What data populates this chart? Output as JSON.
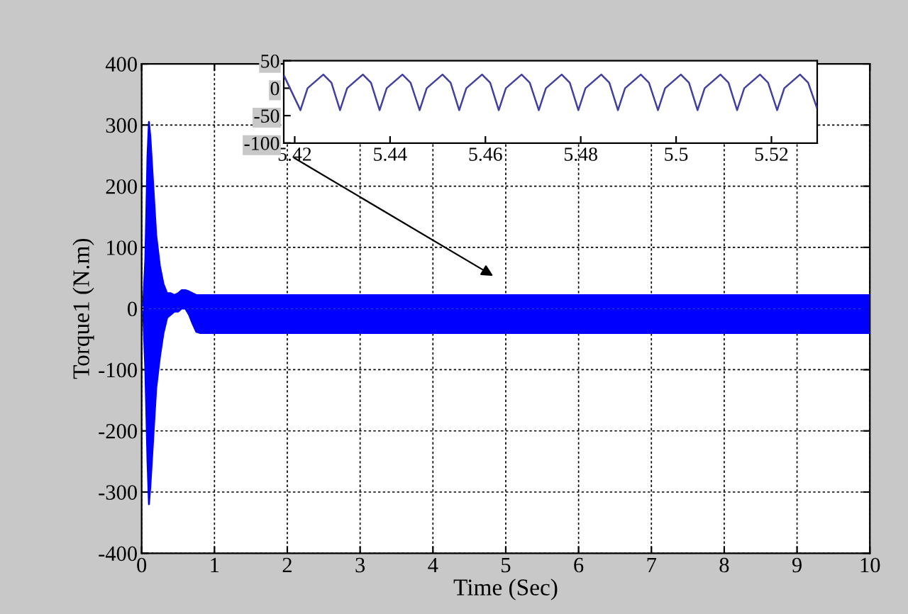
{
  "chart_data": [
    {
      "type": "line",
      "xlabel": "Time (Sec)",
      "ylabel": "Torque1 (N.m)",
      "xlim": [
        0,
        10
      ],
      "xticks": [
        0,
        1,
        2,
        3,
        4,
        5,
        6,
        7,
        8,
        9,
        10
      ],
      "ylim": [
        -400,
        400
      ],
      "yticks": [
        -400,
        -300,
        -200,
        -100,
        0,
        100,
        200,
        300,
        400
      ],
      "grid": true,
      "line_style": "solid",
      "series": [
        {
          "color": "#0000ff",
          "x": [
            0.02,
            0.05,
            0.08,
            0.1,
            0.12,
            0.15,
            0.2,
            0.25,
            0.3,
            0.35,
            0.4,
            0.45,
            0.5,
            0.55,
            0.6,
            0.65,
            0.7,
            0.75,
            0.8,
            1,
            2,
            3,
            4,
            5,
            6,
            7,
            8,
            9,
            10
          ],
          "type": "area",
          "values": [
            5,
            80,
            250,
            305,
            280,
            220,
            120,
            70,
            40,
            25,
            25,
            22,
            25,
            30,
            30,
            28,
            25,
            22,
            22,
            22,
            22,
            22,
            22,
            22,
            22,
            22,
            22,
            22,
            22
          ]
        },
        {
          "color": "#0000ff",
          "type": "area",
          "x": [
            0.02,
            0.05,
            0.08,
            0.1,
            0.12,
            0.15,
            0.2,
            0.25,
            0.3,
            0.35,
            0.4,
            0.45,
            0.5,
            0.55,
            0.6,
            0.65,
            0.7,
            0.75,
            0.8,
            1,
            2,
            3,
            4,
            5,
            6,
            7,
            8,
            9,
            10
          ],
          "values": [
            -5,
            -100,
            -250,
            -320,
            -290,
            -230,
            -130,
            -80,
            -40,
            -15,
            -10,
            -5,
            -5,
            0,
            0,
            -10,
            -25,
            -38,
            -40,
            -40,
            -40,
            -40,
            -40,
            -40,
            -40,
            -40,
            -40,
            -40,
            -40
          ]
        }
      ]
    },
    {
      "type": "line",
      "xlim": [
        5.4177,
        5.5296
      ],
      "xticks": [
        5.42,
        5.44,
        5.46,
        5.48,
        5.5,
        5.52
      ],
      "ylim": [
        -100,
        50
      ],
      "yticks": [
        -100,
        -50,
        0,
        50
      ],
      "line_style": "solid",
      "series": [
        {
          "color": "#4040a0",
          "x": [
            5.4178,
            5.4212,
            5.4227,
            5.426,
            5.4277,
            5.4295,
            5.431,
            5.4343,
            5.436,
            5.4378,
            5.4393,
            5.4426,
            5.4443,
            5.4462,
            5.4477,
            5.451,
            5.4527,
            5.4545,
            5.456,
            5.4593,
            5.461,
            5.4628,
            5.4643,
            5.4676,
            5.4693,
            5.4712,
            5.4727,
            5.476,
            5.4777,
            5.4795,
            5.481,
            5.4843,
            5.486,
            5.4878,
            5.4893,
            5.4926,
            5.4943,
            5.4962,
            5.4977,
            5.501,
            5.5027,
            5.5045,
            5.506,
            5.5093,
            5.511,
            5.5128,
            5.5143,
            5.5176,
            5.5193,
            5.5212,
            5.5227,
            5.526,
            5.5277,
            5.5295
          ],
          "values": [
            22,
            -40,
            0,
            25,
            10,
            -40,
            0,
            25,
            10,
            -40,
            0,
            25,
            10,
            -40,
            0,
            25,
            10,
            -40,
            0,
            25,
            10,
            -40,
            0,
            25,
            10,
            -40,
            0,
            25,
            10,
            -40,
            0,
            25,
            10,
            -40,
            0,
            25,
            10,
            -40,
            0,
            25,
            10,
            -40,
            0,
            25,
            10,
            -40,
            0,
            25,
            10,
            -40,
            0,
            25,
            10,
            -35
          ]
        }
      ]
    }
  ]
}
